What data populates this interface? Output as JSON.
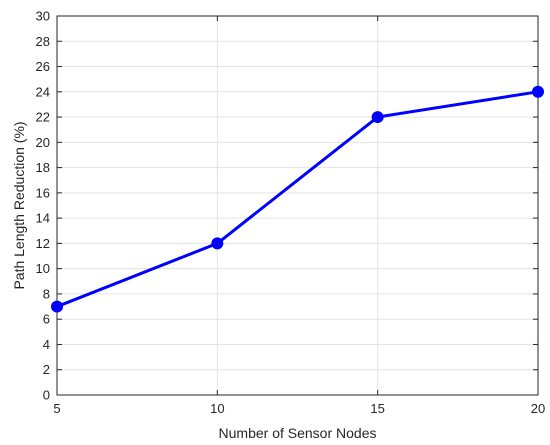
{
  "chart_data": {
    "type": "line",
    "title": "",
    "xlabel": "Number of Sensor Nodes",
    "ylabel": "Path Length Reduction (%)",
    "xlim": [
      5,
      20
    ],
    "ylim": [
      0,
      30
    ],
    "xticks": [
      5,
      10,
      15,
      20
    ],
    "yticks": [
      0,
      2,
      4,
      6,
      8,
      10,
      12,
      14,
      16,
      18,
      20,
      22,
      24,
      26,
      28,
      30
    ],
    "grid": true,
    "legend": "none",
    "series": [
      {
        "x": [
          5,
          10,
          15,
          20
        ],
        "y": [
          7,
          12,
          22,
          24
        ],
        "color": "#0000ff",
        "marker": "circle"
      }
    ]
  }
}
